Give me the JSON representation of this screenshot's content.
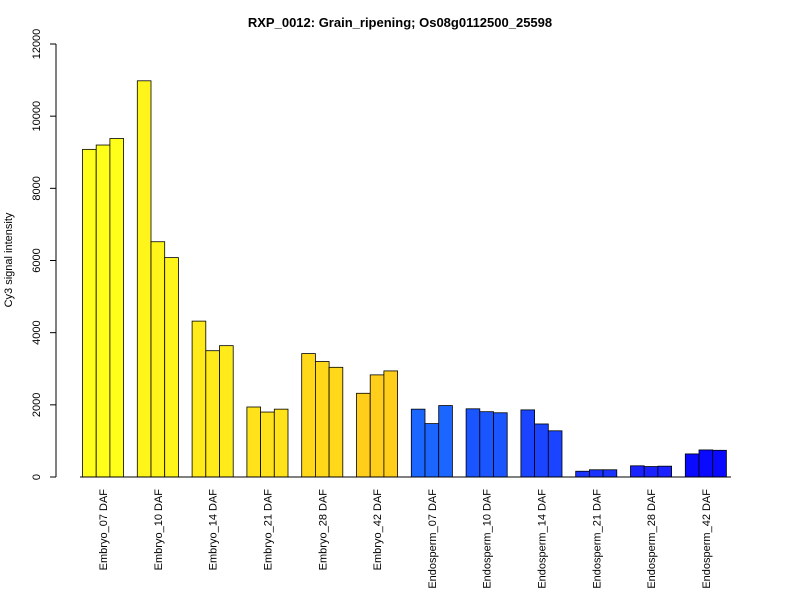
{
  "chart_data": {
    "type": "bar",
    "title": "RXP_0012: Grain_ripening; Os08g0112500_25598",
    "xlabel": "",
    "ylabel": "Cy3 signal intensity",
    "ylim": [
      0,
      12000
    ],
    "yticks": [
      0,
      2000,
      4000,
      6000,
      8000,
      10000,
      12000
    ],
    "grid": false,
    "legend": "none",
    "bars_per_group": 3,
    "groups": [
      {
        "label": "Embryo_07 DAF",
        "color": "#FFFF1A",
        "values": [
          9080,
          9200,
          9380
        ]
      },
      {
        "label": "Embryo_10 DAF",
        "color": "#FFF51A",
        "values": [
          10980,
          6520,
          6080
        ]
      },
      {
        "label": "Embryo_14 DAF",
        "color": "#FFEB1A",
        "values": [
          4320,
          3500,
          3640
        ]
      },
      {
        "label": "Embryo_21 DAF",
        "color": "#FFE21A",
        "values": [
          1940,
          1800,
          1880
        ]
      },
      {
        "label": "Embryo_28 DAF",
        "color": "#FFD81A",
        "values": [
          3420,
          3200,
          3040
        ]
      },
      {
        "label": "Embryo_42 DAF",
        "color": "#FFCE1A",
        "values": [
          2320,
          2830,
          2940
        ]
      },
      {
        "label": "Endosperm_07 DAF",
        "color": "#1A66FF",
        "values": [
          1880,
          1480,
          1980
        ]
      },
      {
        "label": "Endosperm_10 DAF",
        "color": "#1A55FF",
        "values": [
          1890,
          1810,
          1780
        ]
      },
      {
        "label": "Endosperm_14 DAF",
        "color": "#1A44FF",
        "values": [
          1860,
          1470,
          1280
        ]
      },
      {
        "label": "Endosperm_21 DAF",
        "color": "#1A33FF",
        "values": [
          160,
          200,
          200
        ]
      },
      {
        "label": "Endosperm_28 DAF",
        "color": "#1A22FF",
        "values": [
          310,
          290,
          300
        ]
      },
      {
        "label": "Endosperm_42 DAF",
        "color": "#0A0AFF",
        "values": [
          640,
          750,
          740
        ]
      }
    ]
  }
}
